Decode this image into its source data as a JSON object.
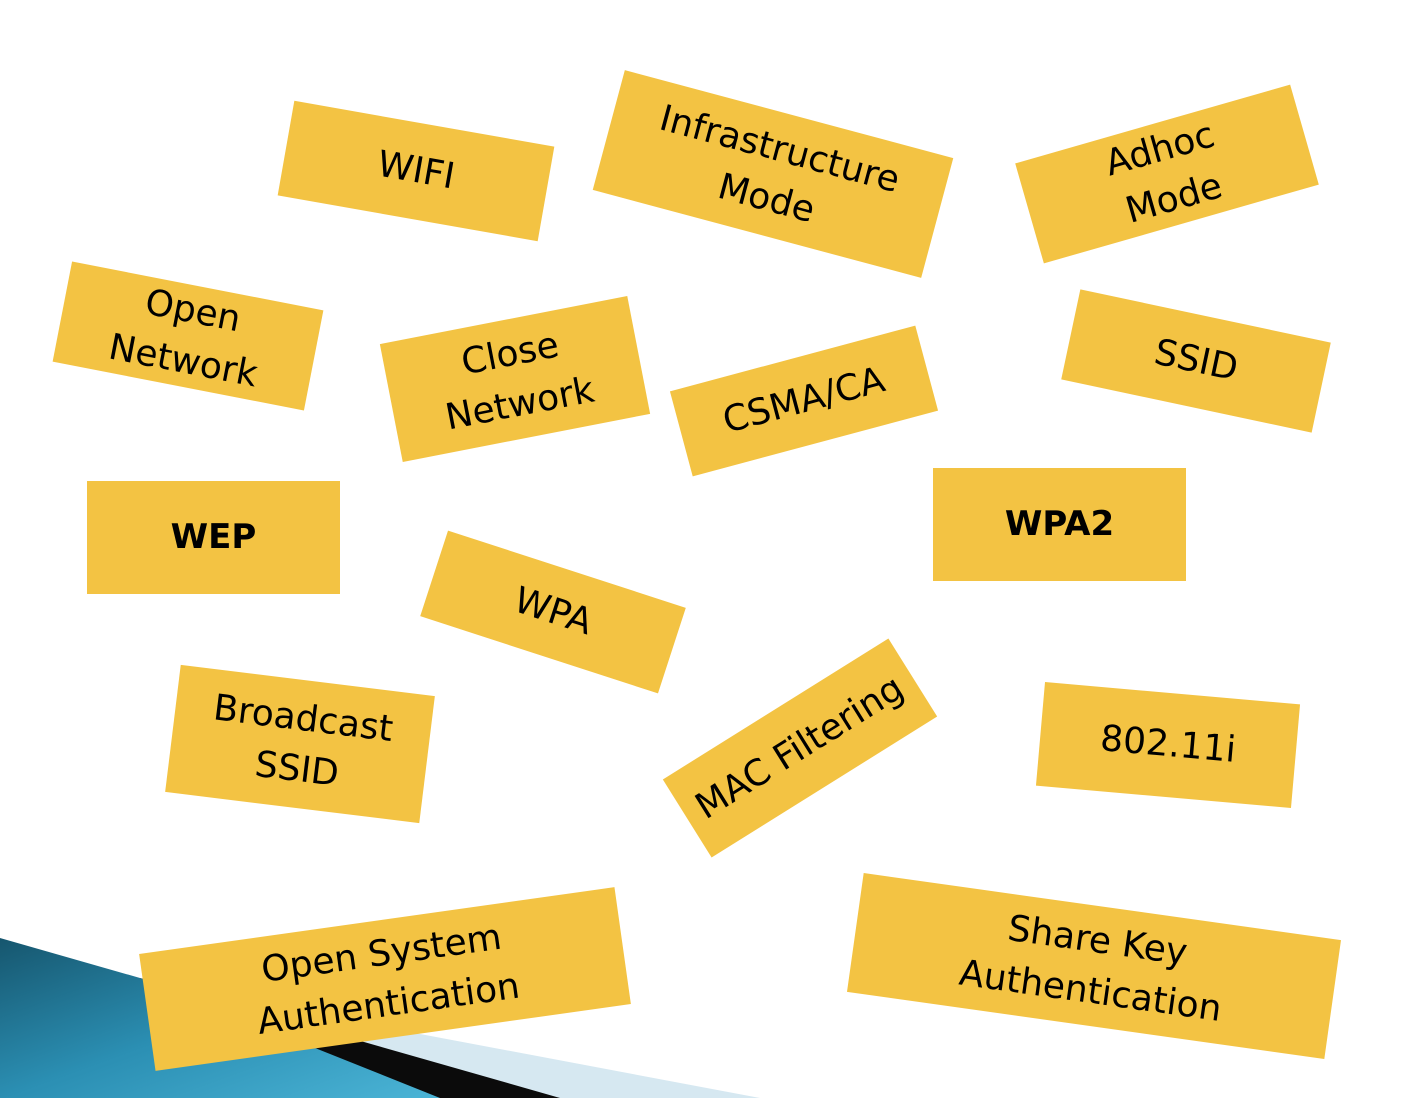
{
  "colors": {
    "card_fill": "#F3C343",
    "text": "#000000",
    "background": "#FFFFFF",
    "accent_dark": "#1A5A72",
    "accent_light": "#D6E8F1"
  },
  "cards": {
    "wifi": "WIFI",
    "infrastructure": "Infrastructure\nMode",
    "adhoc": "Adhoc\nMode",
    "open_network": "Open\nNetwork",
    "close_network": "Close\nNetwork",
    "csma": "CSMA/CA",
    "ssid": "SSID",
    "wep": "WEP",
    "wpa2": "WPA2",
    "wpa": "WPA",
    "broadcast_ssid": "Broadcast\nSSID",
    "mac_filtering": "MAC Filtering",
    "ieee": "802.11i",
    "open_system": "Open System\nAuthentication",
    "share_key": "Share Key\nAuthentication"
  }
}
